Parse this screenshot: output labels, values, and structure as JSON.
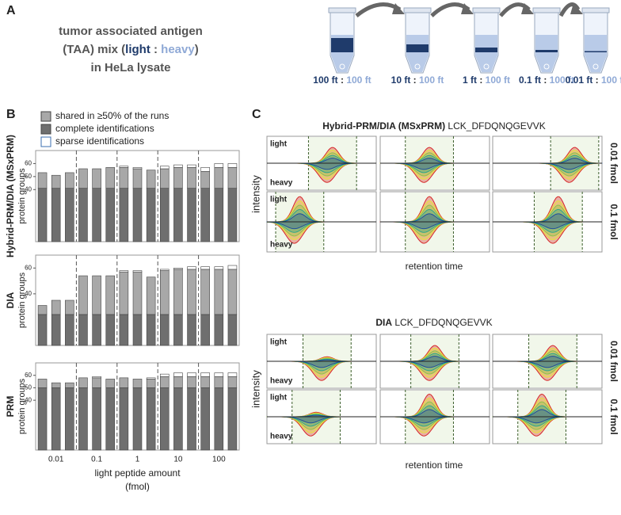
{
  "panel_a": {
    "letter": "A",
    "line1": "tumor associated antigen",
    "line2": [
      "(TAA) mix (",
      "light",
      " : ",
      "heavy",
      ")"
    ],
    "line3": "in HeLa lysate",
    "ratios": [
      [
        "100 ft",
        ":",
        "100 ft"
      ],
      [
        "10 ft",
        ":",
        "100 ft"
      ],
      [
        "1 ft",
        ":",
        "100 ft"
      ],
      [
        "0.1 ft",
        ":",
        "100 ft"
      ],
      [
        "0.01 ft",
        ":",
        "100 ft"
      ]
    ]
  },
  "panel_b_letter": "B",
  "chart_data": [
    {
      "type": "bar",
      "method": "Hybrid-PRM/DIA (MSxPRM)",
      "ylabel": "protein groups",
      "ylim": [
        0,
        70
      ],
      "yticks": [
        40,
        50,
        60
      ],
      "legend": true,
      "series": [
        {
          "name": "shared in ≥50% of the runs",
          "color": "#a8a8a8",
          "values": [
            12,
            10,
            12,
            15,
            15,
            16,
            16,
            15,
            14,
            15,
            16,
            16,
            13,
            16,
            16
          ]
        },
        {
          "name": "complete identifications",
          "color": "#6f6f6f",
          "values": [
            41,
            41,
            41,
            41,
            41,
            41,
            41,
            41,
            41,
            41,
            41,
            41,
            41,
            41,
            41
          ]
        },
        {
          "name": "sparse identifications",
          "color": "#ffffff",
          "values": [
            0,
            0,
            0,
            0,
            0,
            0,
            1,
            1,
            0,
            2,
            2,
            2,
            3,
            3,
            3
          ]
        }
      ]
    },
    {
      "type": "bar",
      "method": "DIA",
      "ylabel": "protein groups",
      "ylim": [
        0,
        70
      ],
      "yticks": [
        40,
        60
      ],
      "legend": false,
      "series": [
        {
          "name": "shared in ≥50% of the runs",
          "color": "#a8a8a8",
          "values": [
            7,
            11,
            11,
            30,
            30,
            30,
            33,
            33,
            29,
            34,
            35,
            35,
            35,
            35,
            35
          ]
        },
        {
          "name": "complete identifications",
          "color": "#6f6f6f",
          "values": [
            24,
            24,
            24,
            24,
            24,
            24,
            24,
            24,
            24,
            24,
            24,
            24,
            24,
            24,
            24
          ]
        },
        {
          "name": "sparse identifications",
          "color": "#ffffff",
          "values": [
            0,
            0,
            0,
            0,
            0,
            0,
            1,
            1,
            0,
            1,
            1,
            2,
            2,
            2,
            3
          ]
        }
      ]
    },
    {
      "type": "bar",
      "method": "PRM",
      "ylabel": "protein groups",
      "ylim": [
        0,
        70
      ],
      "yticks": [
        40,
        50,
        60
      ],
      "legend": false,
      "categories": [
        null,
        "0.01",
        null,
        null,
        "0.1",
        null,
        null,
        "1",
        null,
        null,
        "10",
        null,
        null,
        "100",
        null
      ],
      "xlabel": "light peptide amount",
      "xlabel_unit": "(fmol)",
      "series": [
        {
          "name": "shared in ≥50% of the runs",
          "color": "#a8a8a8",
          "values": [
            7,
            4,
            4,
            8,
            8,
            7,
            8,
            7,
            7,
            9,
            9,
            9,
            9,
            9,
            9
          ]
        },
        {
          "name": "complete identifications",
          "color": "#6f6f6f",
          "values": [
            50,
            50,
            50,
            50,
            50,
            50,
            50,
            50,
            50,
            50,
            50,
            50,
            50,
            50,
            50
          ]
        },
        {
          "name": "sparse identifications",
          "color": "#ffffff",
          "values": [
            0,
            0,
            0,
            0,
            1,
            0,
            0,
            0,
            1,
            2,
            3,
            3,
            3,
            3,
            3
          ]
        }
      ]
    }
  ],
  "panel_c": {
    "letter": "C",
    "sections": [
      {
        "method": "Hybrid-PRM/DIA (MSxPRM)",
        "peptide": "LCK_DFDQNQGEVVK",
        "ylabel": "intensity",
        "xlabel": "retention time",
        "rows": [
          {
            "label": "0.01 fmol",
            "light": "light",
            "heavy": "heavy"
          },
          {
            "label": "0.1 fmol",
            "light": "light",
            "heavy": "heavy"
          }
        ]
      },
      {
        "method": "DIA",
        "peptide": "LCK_DFDQNQGEVVK",
        "ylabel": "intensity",
        "xlabel": "retention time",
        "rows": [
          {
            "label": "0.01 fmol",
            "light": "light",
            "heavy": "heavy"
          },
          {
            "label": "0.1 fmol",
            "light": "light",
            "heavy": "heavy"
          }
        ]
      }
    ]
  }
}
